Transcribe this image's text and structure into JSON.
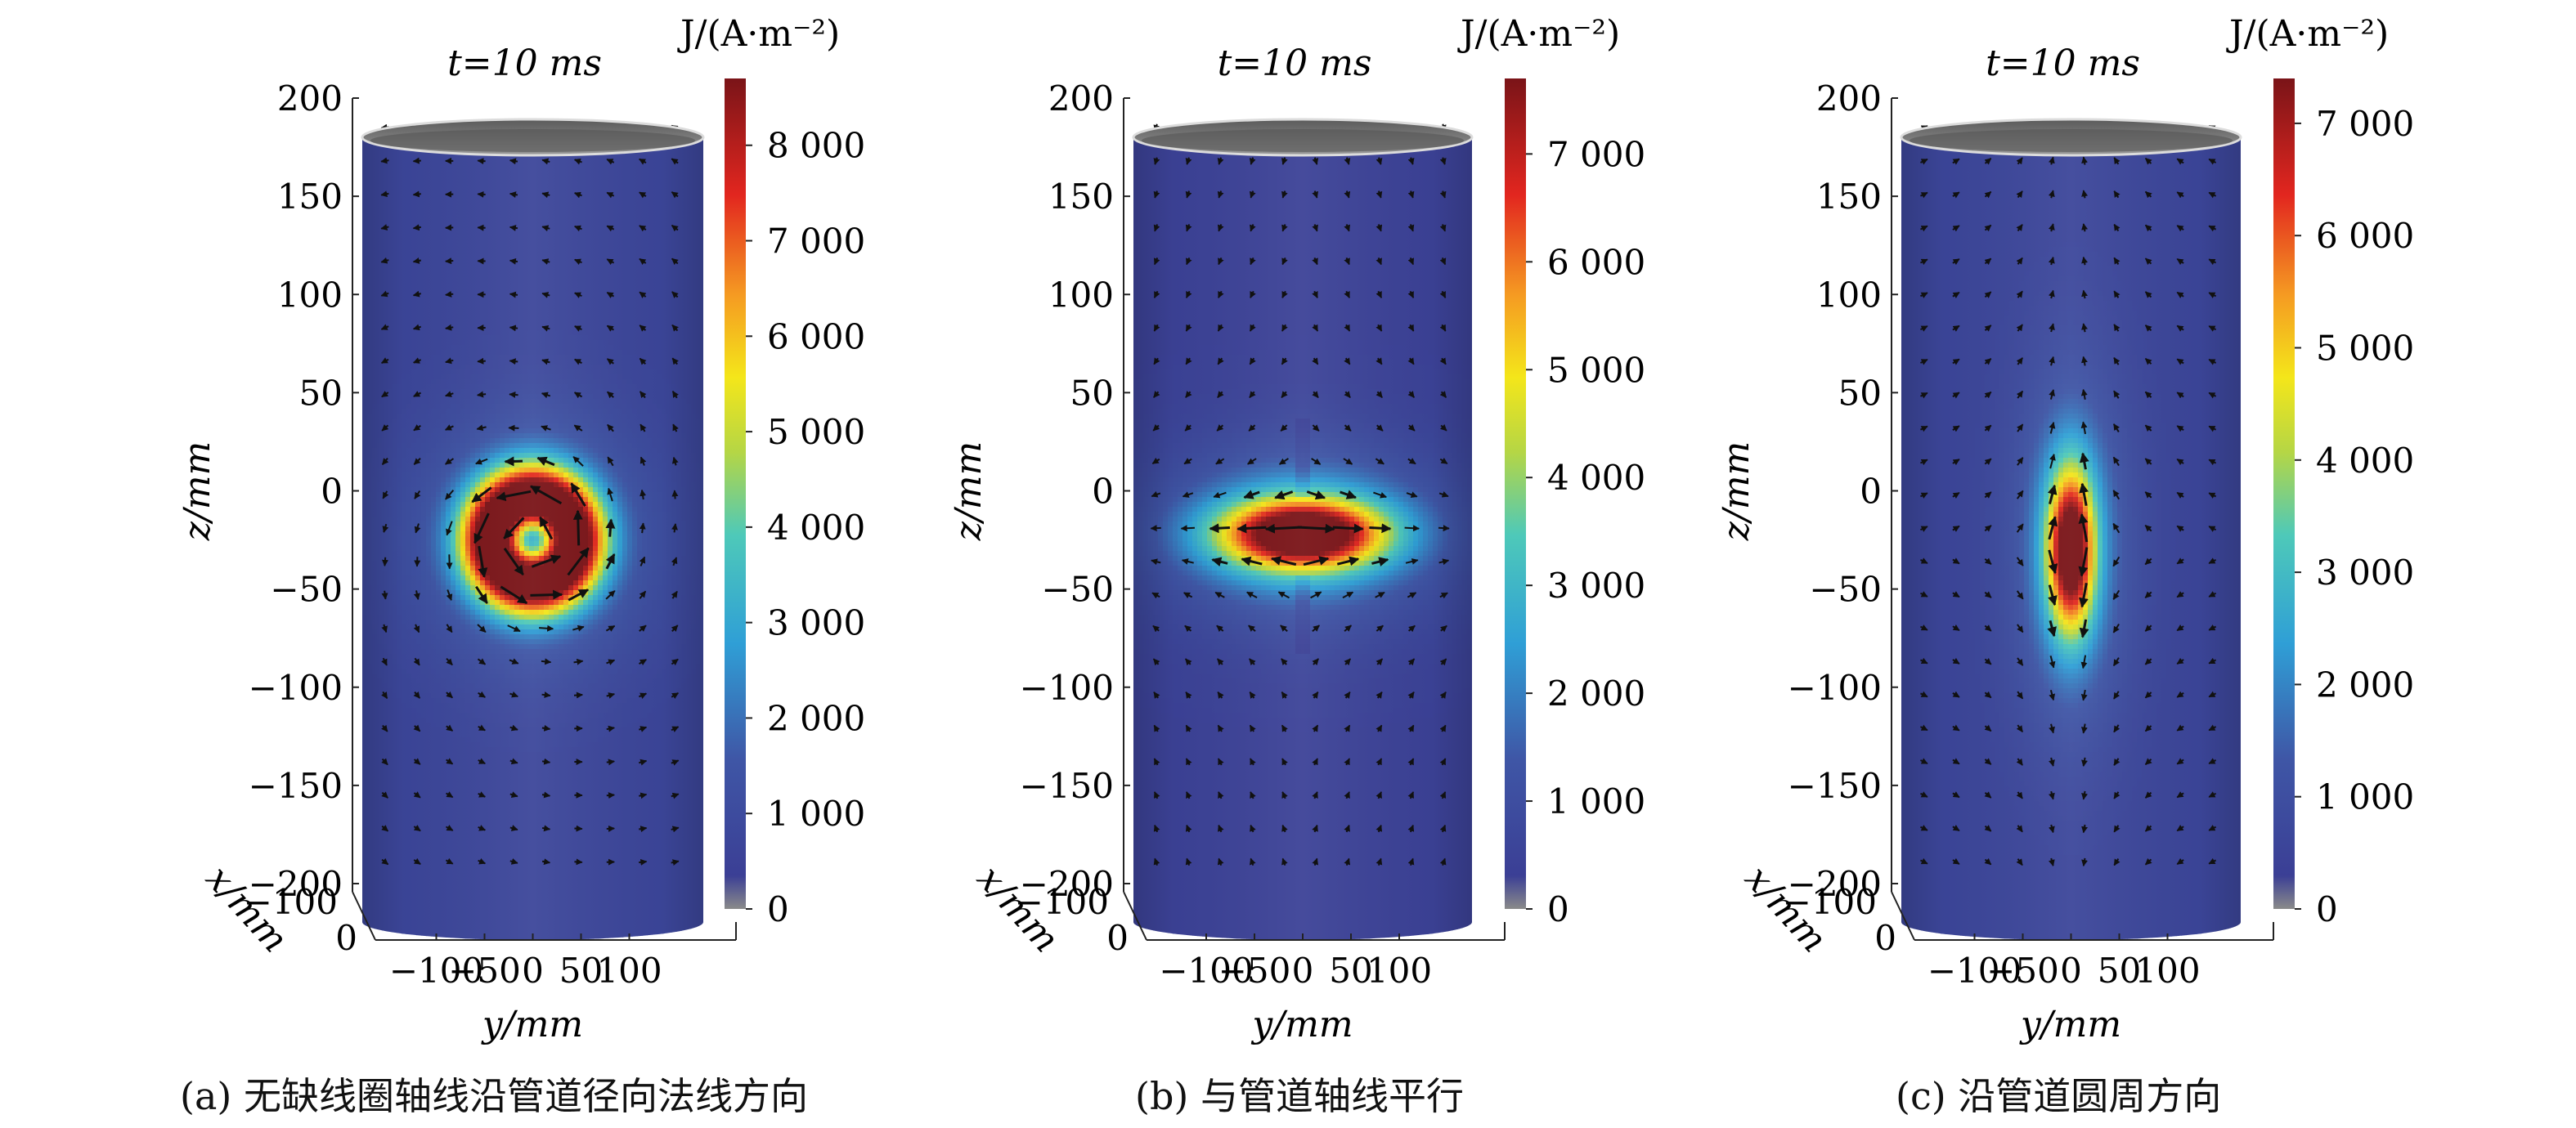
{
  "chart_data": [
    {
      "type": "heatmap",
      "panel": "a",
      "time_label": "t=10 ms",
      "caption": "(a) 无缺线圈轴线沿管道径向法线方向",
      "xlabel": "y/mm",
      "ylabel": "z/mm",
      "depth_label": "x/mm",
      "x_ticks": [
        -100,
        -50,
        0,
        50,
        100
      ],
      "x_tick_labels": [
        "−100",
        "−50",
        "0",
        "50",
        "100"
      ],
      "z_ticks": [
        200,
        150,
        100,
        50,
        0,
        -50,
        -100,
        -150,
        -200
      ],
      "z_tick_labels": [
        "200",
        "150",
        "100",
        "50",
        "0",
        "−50",
        "−100",
        "−150",
        "−200"
      ],
      "depth_ticks": [
        -100,
        0
      ],
      "depth_tick_labels": [
        "−100",
        "0"
      ],
      "colorbar": {
        "label": "J/(A·m⁻²)",
        "min": 0,
        "max": 8700,
        "ticks": [
          0,
          1000,
          2000,
          3000,
          4000,
          5000,
          6000,
          7000,
          8000
        ],
        "tick_labels": [
          "0",
          "1 000",
          "2 000",
          "3 000",
          "4 000",
          "5 000",
          "6 000",
          "7 000",
          "8 000"
        ]
      },
      "pattern": "vortex",
      "peak_center_yz": [
        0,
        -25
      ],
      "peak_value": 8700,
      "background_value": 700
    },
    {
      "type": "heatmap",
      "panel": "b",
      "time_label": "t=10 ms",
      "caption": "(b) 与管道轴线平行",
      "xlabel": "y/mm",
      "ylabel": "z/mm",
      "depth_label": "x/mm",
      "x_ticks": [
        -100,
        -50,
        0,
        50,
        100
      ],
      "x_tick_labels": [
        "−100",
        "−50",
        "0",
        "50",
        "100"
      ],
      "z_ticks": [
        200,
        150,
        100,
        50,
        0,
        -50,
        -100,
        -150,
        -200
      ],
      "z_tick_labels": [
        "200",
        "150",
        "100",
        "50",
        "0",
        "−50",
        "−100",
        "−150",
        "−200"
      ],
      "depth_ticks": [
        -100,
        0
      ],
      "depth_tick_labels": [
        "−100",
        "0"
      ],
      "colorbar": {
        "label": "J/(A·m⁻²)",
        "min": 0,
        "max": 7700,
        "ticks": [
          0,
          1000,
          2000,
          3000,
          4000,
          5000,
          6000,
          7000
        ],
        "tick_labels": [
          "0",
          "1 000",
          "2 000",
          "3 000",
          "4 000",
          "5 000",
          "6 000",
          "7 000"
        ]
      },
      "pattern": "horizontal",
      "peak_center_yz": [
        0,
        -22
      ],
      "peak_value": 7700,
      "background_value": 400
    },
    {
      "type": "heatmap",
      "panel": "c",
      "time_label": "t=10 ms",
      "caption": "(c) 沿管道圆周方向",
      "xlabel": "y/mm",
      "ylabel": "z/mm",
      "depth_label": "x/mm",
      "x_ticks": [
        -100,
        -50,
        0,
        50,
        100
      ],
      "x_tick_labels": [
        "−100",
        "−50",
        "0",
        "50",
        "100"
      ],
      "z_ticks": [
        200,
        150,
        100,
        50,
        0,
        -50,
        -100,
        -150,
        -200
      ],
      "z_tick_labels": [
        "200",
        "150",
        "100",
        "50",
        "0",
        "−50",
        "−100",
        "−150",
        "−200"
      ],
      "depth_ticks": [
        -100,
        0
      ],
      "depth_tick_labels": [
        "−100",
        "0"
      ],
      "colorbar": {
        "label": "J/(A·m⁻²)",
        "min": 0,
        "max": 7400,
        "ticks": [
          0,
          1000,
          2000,
          3000,
          4000,
          5000,
          6000,
          7000
        ],
        "tick_labels": [
          "0",
          "1 000",
          "2 000",
          "3 000",
          "4 000",
          "5 000",
          "6 000",
          "7 000"
        ]
      },
      "pattern": "vertical",
      "peak_center_yz": [
        0,
        -30
      ],
      "peak_value": 7400,
      "background_value": 700
    }
  ]
}
